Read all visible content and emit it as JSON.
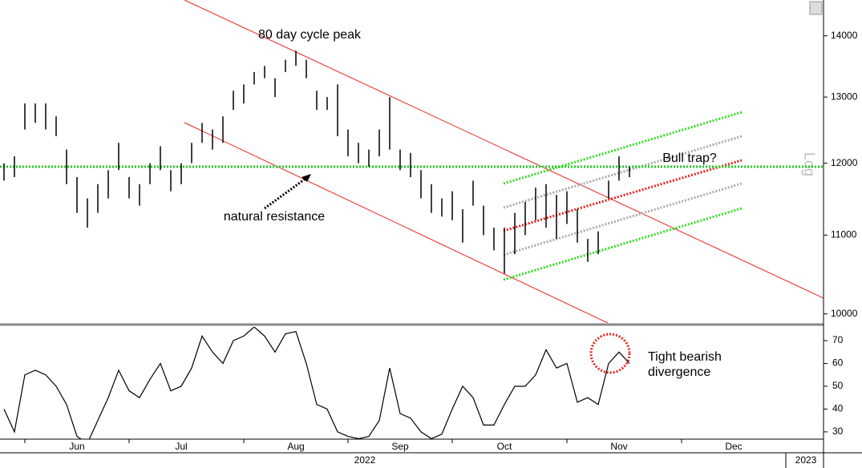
{
  "chart_data": [
    {
      "type": "ohlc",
      "log_scale": true,
      "scale_label": "Log",
      "color": "#000000",
      "ylim": [
        9920,
        14620
      ],
      "yticks": [
        10000,
        11000,
        12000,
        13000,
        14000
      ],
      "hline": 11950,
      "hline_color": "#22cc22",
      "annotations": [
        "80 day cycle peak",
        "Bull trap?",
        "natural resistance"
      ],
      "high": [
        12000,
        12100,
        12900,
        12900,
        12900,
        12700,
        12200,
        11800,
        11500,
        11700,
        11900,
        12300,
        11800,
        11700,
        12000,
        12250,
        11900,
        12000,
        12300,
        12600,
        12500,
        12700,
        13100,
        13200,
        13400,
        13500,
        13300,
        13600,
        13750,
        13600,
        13100,
        13000,
        13200,
        12500,
        12300,
        12200,
        12500,
        13000,
        12200,
        12150,
        11900,
        11700,
        11500,
        11600,
        11350,
        11750,
        11400,
        11100,
        11100,
        11300,
        11450,
        11650,
        11700,
        11550,
        11600,
        11350,
        10950,
        11050,
        11750,
        12100,
        11950
      ],
      "low": [
        11750,
        11800,
        12500,
        12600,
        12500,
        12400,
        11700,
        11300,
        11100,
        11300,
        11500,
        11900,
        11500,
        11400,
        11700,
        11900,
        11600,
        11700,
        12000,
        12300,
        12200,
        12300,
        12800,
        12900,
        13200,
        13300,
        13000,
        13400,
        13500,
        13300,
        12800,
        12800,
        12400,
        12100,
        12000,
        11950,
        12100,
        12200,
        11900,
        11800,
        11500,
        11300,
        11250,
        11200,
        10900,
        11400,
        11000,
        10800,
        10500,
        10750,
        11000,
        11200,
        11100,
        10950,
        11150,
        10900,
        10650,
        10750,
        11500,
        11750,
        11800
      ]
    },
    {
      "type": "line",
      "color": "#000000",
      "ylim": [
        26.8,
        76
      ],
      "yticks": [
        30,
        40,
        50,
        60,
        70
      ],
      "annotation": "Tight bearish divergence",
      "year_labels": [
        "2022",
        "2023"
      ],
      "categories": [
        null,
        null,
        null,
        null,
        null,
        null,
        null,
        "Jun",
        null,
        null,
        null,
        null,
        null,
        null,
        null,
        null,
        null,
        "Jul",
        null,
        null,
        null,
        null,
        null,
        null,
        null,
        null,
        null,
        null,
        "Aug",
        null,
        null,
        null,
        null,
        null,
        null,
        null,
        null,
        null,
        "Sep",
        null,
        null,
        null,
        null,
        null,
        null,
        null,
        null,
        null,
        "Oct",
        null,
        null,
        null,
        null,
        null,
        null,
        null,
        null,
        null,
        null,
        "Nov",
        null,
        null,
        null,
        null,
        null,
        null,
        null,
        null,
        null,
        null,
        "Dec",
        null,
        null,
        null,
        null,
        null,
        null,
        null,
        null
      ],
      "values": [
        40,
        30,
        55,
        57,
        55,
        50,
        42,
        28,
        25,
        35,
        45,
        57,
        48,
        45,
        53,
        60,
        48,
        50,
        58,
        72,
        65,
        60,
        70,
        72,
        76,
        72,
        65,
        73,
        74,
        60,
        42,
        40,
        30,
        28,
        27,
        28,
        35,
        58,
        38,
        36,
        30,
        27,
        29,
        40,
        50,
        45,
        33,
        33,
        42,
        50,
        50,
        55,
        66,
        58,
        60,
        43,
        45,
        42,
        60,
        65,
        60,
        null,
        null,
        null,
        null,
        null,
        null,
        null,
        null,
        null,
        null,
        null,
        null,
        null,
        null,
        null,
        null,
        null,
        null
      ]
    }
  ]
}
